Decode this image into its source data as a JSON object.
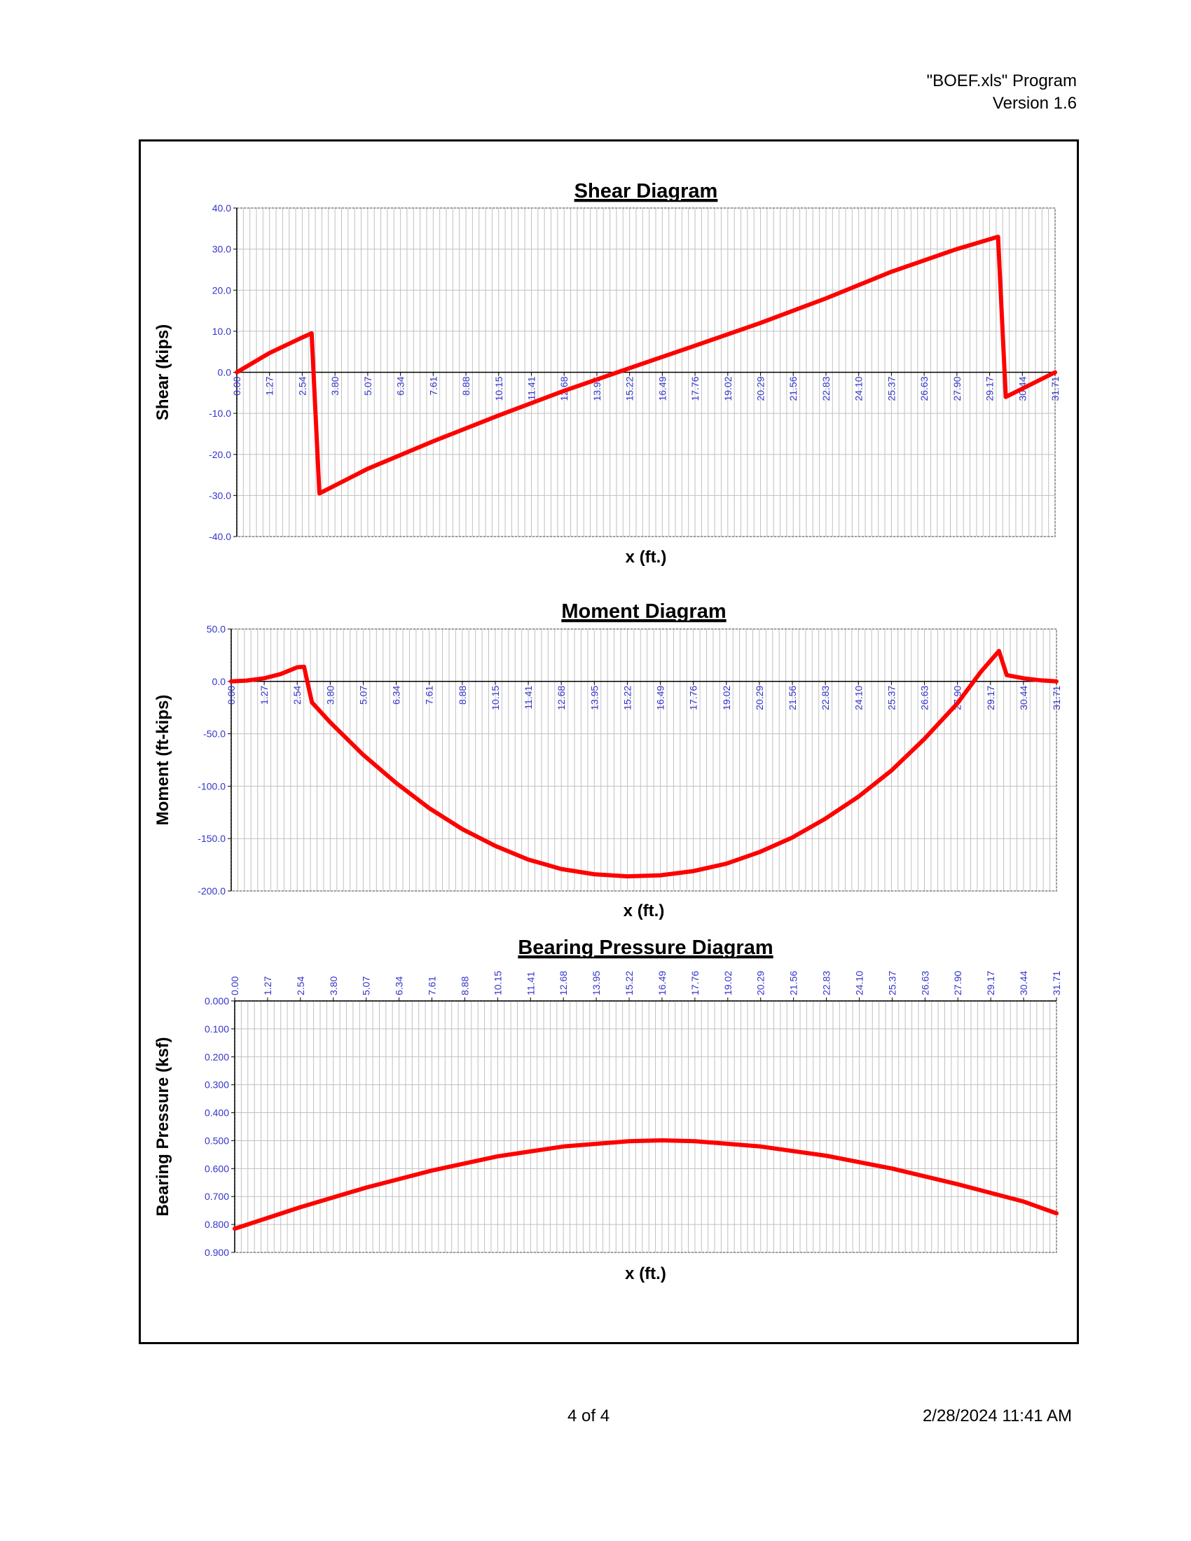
{
  "header": {
    "program": "\"BOEF.xls\" Program",
    "version": "Version 1.6"
  },
  "footer": {
    "page": "4 of 4",
    "datetime": "2/28/2024  11:41 AM"
  },
  "colors": {
    "series": "#ff0000",
    "tick_labels": "#3333cc",
    "grid": "#c0c0c0"
  },
  "chart_data": [
    {
      "type": "line",
      "title": "Shear Diagram",
      "xlabel": "x (ft.)",
      "ylabel": "Shear (kips)",
      "xlim": [
        0,
        31.71
      ],
      "ylim": [
        -40,
        40
      ],
      "y_ticks": [
        "40.0",
        "30.0",
        "20.0",
        "10.0",
        "0.0",
        "-10.0",
        "-20.0",
        "-30.0",
        "-40.0"
      ],
      "x_ticks": [
        "0.00",
        "1.27",
        "2.54",
        "3.80",
        "5.07",
        "6.34",
        "7.61",
        "8.88",
        "10.15",
        "11.41",
        "12.68",
        "13.95",
        "15.22",
        "16.49",
        "17.76",
        "19.02",
        "20.29",
        "21.56",
        "22.83",
        "24.10",
        "25.37",
        "26.63",
        "27.90",
        "29.17",
        "30.44",
        "31.71"
      ],
      "x_tick_position": "axis",
      "grid": true,
      "series": [
        {
          "x": [
            0.0,
            1.27,
            2.54,
            2.9,
            3.2,
            5.07,
            7.61,
            10.15,
            12.68,
            15.22,
            17.76,
            20.29,
            22.83,
            25.37,
            27.9,
            29.5,
            29.8,
            31.71
          ],
          "y": [
            0.0,
            4.7,
            8.5,
            9.5,
            -29.5,
            -23.5,
            -16.8,
            -10.5,
            -4.5,
            1.0,
            6.5,
            12.0,
            18.0,
            24.5,
            30.0,
            33.0,
            -6.0,
            0.0
          ]
        }
      ]
    },
    {
      "type": "line",
      "title": "Moment Diagram",
      "xlabel": "x (ft.)",
      "ylabel": "Moment (ft-kips)",
      "xlim": [
        0,
        31.71
      ],
      "ylim": [
        -200,
        50
      ],
      "y_ticks": [
        "50.0",
        "0.0",
        "-50.0",
        "-100.0",
        "-150.0",
        "-200.0"
      ],
      "x_ticks": [
        "0.00",
        "1.27",
        "2.54",
        "3.80",
        "5.07",
        "6.34",
        "7.61",
        "8.88",
        "10.15",
        "11.41",
        "12.68",
        "13.95",
        "15.22",
        "16.49",
        "17.76",
        "19.02",
        "20.29",
        "21.56",
        "22.83",
        "24.10",
        "25.37",
        "26.63",
        "27.90",
        "29.17",
        "30.44",
        "31.71"
      ],
      "x_tick_position": "axis",
      "grid": true,
      "series": [
        {
          "x": [
            0.0,
            0.6,
            1.27,
            1.9,
            2.54,
            2.8,
            3.1,
            3.8,
            5.07,
            6.34,
            7.61,
            8.88,
            10.15,
            11.41,
            12.68,
            13.95,
            15.22,
            16.49,
            17.76,
            19.02,
            20.29,
            21.56,
            22.83,
            24.1,
            25.37,
            26.63,
            27.9,
            28.8,
            29.5,
            29.8,
            30.44,
            31.1,
            31.71
          ],
          "y": [
            0.0,
            0.8,
            3.0,
            7.0,
            13.5,
            14.0,
            -20.0,
            -39.0,
            -70.0,
            -97.0,
            -121.0,
            -141.0,
            -157.0,
            -170.0,
            -179.0,
            -184.0,
            -186.0,
            -185.0,
            -181.0,
            -174.0,
            -163.0,
            -149.0,
            -131.0,
            -110.0,
            -85.0,
            -55.0,
            -21.0,
            9.0,
            29.0,
            6.0,
            3.0,
            1.0,
            0.0
          ]
        }
      ]
    },
    {
      "type": "line",
      "title": "Bearing Pressure Diagram",
      "xlabel": "x (ft.)",
      "ylabel": "Bearing Pressure (ksf)",
      "xlim": [
        0,
        31.71
      ],
      "ylim": [
        0,
        0.9
      ],
      "y_inverted": true,
      "y_ticks": [
        "0.000",
        "0.100",
        "0.200",
        "0.300",
        "0.400",
        "0.500",
        "0.600",
        "0.700",
        "0.800",
        "0.900"
      ],
      "x_ticks": [
        "0.00",
        "1.27",
        "2.54",
        "3.80",
        "5.07",
        "6.34",
        "7.61",
        "8.88",
        "10.15",
        "11.41",
        "12.68",
        "13.95",
        "15.22",
        "16.49",
        "17.76",
        "19.02",
        "20.29",
        "21.56",
        "22.83",
        "24.10",
        "25.37",
        "26.63",
        "27.90",
        "29.17",
        "30.44",
        "31.71"
      ],
      "x_tick_position": "top",
      "grid": true,
      "series": [
        {
          "x": [
            0.0,
            2.54,
            5.07,
            7.61,
            10.15,
            12.68,
            15.22,
            16.49,
            17.76,
            20.29,
            22.83,
            25.37,
            27.9,
            30.44,
            31.71
          ],
          "y": [
            0.815,
            0.738,
            0.668,
            0.607,
            0.556,
            0.521,
            0.502,
            0.499,
            0.502,
            0.521,
            0.554,
            0.6,
            0.656,
            0.718,
            0.76
          ]
        }
      ]
    }
  ]
}
